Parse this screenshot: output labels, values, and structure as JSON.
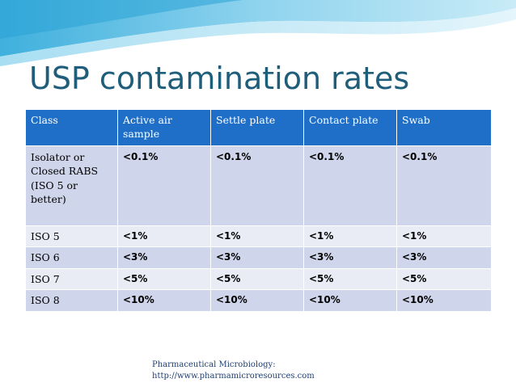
{
  "slide": {
    "title": "USP contamination rates"
  },
  "table": {
    "headers": [
      "Class",
      "Active air sample",
      "Settle plate",
      "Contact plate",
      "Swab"
    ],
    "rows": [
      [
        "Isolator or Closed RABS (ISO 5 or better)",
        "<0.1%",
        "<0.1%",
        "<0.1%",
        "<0.1%"
      ],
      [
        "ISO 5",
        "<1%",
        "<1%",
        "<1%",
        "<1%"
      ],
      [
        "ISO 6",
        "<3%",
        "<3%",
        "<3%",
        "<3%"
      ],
      [
        "ISO 7",
        "<5%",
        "<5%",
        "<5%",
        "<5%"
      ],
      [
        "ISO 8",
        "<10%",
        "<10%",
        "<10%",
        "<10%"
      ]
    ]
  },
  "footer": {
    "line1": "Pharmaceutical Microbiology:",
    "line2": "http://www.pharmamicroresources.com"
  },
  "colors": {
    "header_bg": "#1f6fc8",
    "row_dark": "#cfd5ea",
    "row_light": "#e9ebf5",
    "title": "#1f5e7a",
    "wave_accent": "#6fc4e6"
  }
}
